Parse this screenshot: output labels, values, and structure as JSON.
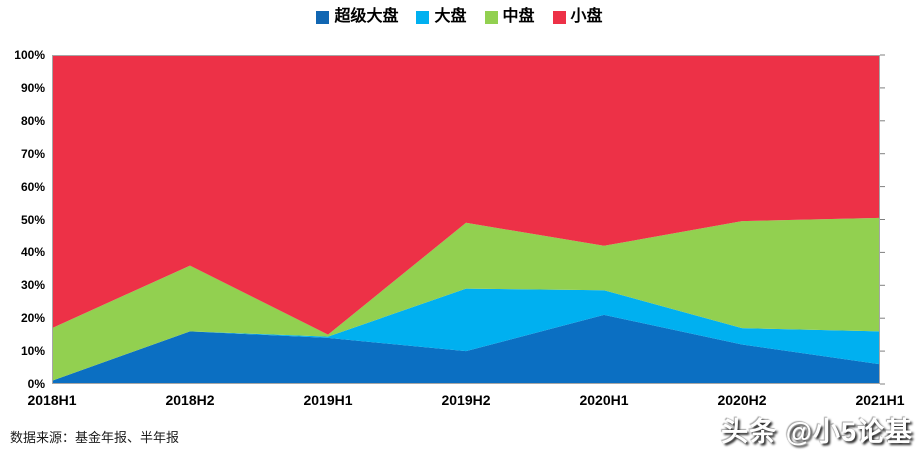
{
  "footer": {
    "source": "数据来源：基金年报、半年报",
    "watermark": "头条 @小5论基"
  },
  "legend": {
    "items": [
      {
        "key": "super-large-cap",
        "label": "超级大盘",
        "color": "#1166b2"
      },
      {
        "key": "large-cap",
        "label": "大盘",
        "color": "#00b0f0"
      },
      {
        "key": "mid-cap",
        "label": "中盘",
        "color": "#92d050"
      },
      {
        "key": "small-cap",
        "label": "小盘",
        "color": "#ed3147"
      }
    ]
  },
  "chart_data": {
    "type": "area",
    "stacked": true,
    "percent_stacked": true,
    "title": "",
    "xlabel": "",
    "ylabel": "",
    "legend_position": "top",
    "gridlines": false,
    "categories": [
      "2018H1",
      "2018H2",
      "2019H1",
      "2019H2",
      "2020H1",
      "2020H2",
      "2021H1"
    ],
    "series": [
      {
        "key": "super-large-cap",
        "name": "超级大盘",
        "color": "#0b6fc2",
        "values": [
          1,
          16,
          14,
          10,
          21,
          12,
          6
        ]
      },
      {
        "key": "large-cap",
        "name": "大盘",
        "color": "#00b0f0",
        "values": [
          0,
          0,
          0.4,
          19,
          7.5,
          5,
          10
        ]
      },
      {
        "key": "mid-cap",
        "name": "中盘",
        "color": "#92d050",
        "values": [
          16,
          20,
          0.6,
          20,
          13.5,
          32.5,
          34.5
        ]
      },
      {
        "key": "small-cap",
        "name": "小盘",
        "color": "#ed3147",
        "values": [
          83,
          64,
          85,
          51,
          58,
          50.5,
          49.5
        ]
      }
    ],
    "y_axis": {
      "min": 0,
      "max": 100,
      "tick_labels": [
        "0%",
        "10%",
        "20%",
        "30%",
        "40%",
        "50%",
        "60%",
        "70%",
        "80%",
        "90%",
        "100%"
      ]
    },
    "plot_border_color": "#a6a6a6",
    "tick_mark_color": "#808080"
  }
}
